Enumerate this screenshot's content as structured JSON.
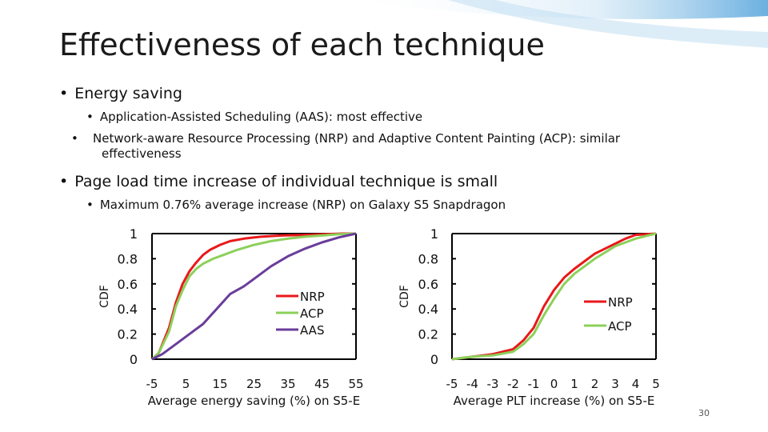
{
  "slide": {
    "title": "Effectiveness of each technique",
    "bullets": [
      {
        "text": "Energy saving",
        "sub": [
          "Application-Assisted Scheduling (AAS): most effective",
          "Network-aware Resource Processing (NRP) and Adaptive Content Painting (ACP): similar effectiveness"
        ]
      },
      {
        "text": "Page load time increase of individual technique is small",
        "sub": [
          "Maximum 0.76% average increase (NRP) on Galaxy S5 Snapdragon"
        ]
      }
    ],
    "bullet_char": "•",
    "page_number": "30"
  },
  "colors": {
    "NRP": "#e8191b",
    "ACP": "#8cd05a",
    "AAS": "#6a3d9a",
    "axis": "#000000"
  },
  "chart_data": [
    {
      "type": "line",
      "xlabel": "Average energy saving (%) on S5-E",
      "ylabel": "CDF",
      "xlim": [
        -5,
        55
      ],
      "ylim": [
        0,
        1
      ],
      "xticks": [
        -5,
        5,
        15,
        25,
        35,
        45,
        55
      ],
      "yticks": [
        0,
        0.2,
        0.4,
        0.6,
        0.8,
        1
      ],
      "ytick_labels": [
        "0",
        "0.2",
        "0.4",
        "0.6",
        "0.8",
        "1"
      ],
      "legend": "center-right",
      "series": [
        {
          "name": "NRP",
          "x": [
            -5,
            -3,
            0,
            2,
            4,
            6,
            8,
            10,
            12,
            15,
            18,
            22,
            27,
            33,
            40,
            46,
            51,
            55
          ],
          "y": [
            0,
            0.05,
            0.25,
            0.45,
            0.6,
            0.7,
            0.77,
            0.83,
            0.87,
            0.91,
            0.94,
            0.96,
            0.975,
            0.985,
            0.99,
            0.995,
            1,
            1
          ]
        },
        {
          "name": "ACP",
          "x": [
            -5,
            -3,
            0,
            2,
            4,
            6,
            8,
            10,
            13,
            16,
            20,
            25,
            30,
            35,
            40,
            45,
            50,
            55
          ],
          "y": [
            0,
            0.05,
            0.22,
            0.42,
            0.55,
            0.66,
            0.72,
            0.76,
            0.8,
            0.83,
            0.87,
            0.91,
            0.94,
            0.96,
            0.975,
            0.985,
            0.995,
            1
          ]
        },
        {
          "name": "AAS",
          "x": [
            -5,
            -2,
            2,
            6,
            10,
            14,
            18,
            22,
            26,
            30,
            35,
            40,
            45,
            50,
            55
          ],
          "y": [
            0,
            0.04,
            0.12,
            0.2,
            0.28,
            0.4,
            0.52,
            0.58,
            0.66,
            0.74,
            0.82,
            0.88,
            0.93,
            0.97,
            1
          ]
        }
      ]
    },
    {
      "type": "line",
      "xlabel": "Average PLT increase (%) on S5-E",
      "ylabel": "CDF",
      "xlim": [
        -5,
        5
      ],
      "ylim": [
        0,
        1
      ],
      "xticks": [
        -5,
        -4,
        -3,
        -2,
        -1,
        0,
        1,
        2,
        3,
        4,
        5
      ],
      "yticks": [
        0,
        0.2,
        0.4,
        0.6,
        0.8,
        1
      ],
      "ytick_labels": [
        "0",
        "0.2",
        "0.4",
        "0.6",
        "0.8",
        "1"
      ],
      "legend": "center-right",
      "series": [
        {
          "name": "NRP",
          "x": [
            -5,
            -4,
            -3,
            -2,
            -1.5,
            -1,
            -0.5,
            0,
            0.5,
            1,
            1.5,
            2,
            2.5,
            3,
            3.5,
            4,
            5
          ],
          "y": [
            0,
            0.02,
            0.04,
            0.08,
            0.15,
            0.25,
            0.42,
            0.55,
            0.65,
            0.72,
            0.78,
            0.84,
            0.88,
            0.92,
            0.96,
            0.99,
            1
          ]
        },
        {
          "name": "ACP",
          "x": [
            -5,
            -4,
            -3,
            -2,
            -1.5,
            -1,
            -0.5,
            0,
            0.5,
            1,
            1.5,
            2,
            2.5,
            3,
            3.5,
            4,
            4.5,
            5
          ],
          "y": [
            0,
            0.02,
            0.03,
            0.06,
            0.12,
            0.2,
            0.35,
            0.48,
            0.6,
            0.68,
            0.74,
            0.8,
            0.85,
            0.9,
            0.93,
            0.96,
            0.98,
            1
          ]
        }
      ]
    }
  ]
}
